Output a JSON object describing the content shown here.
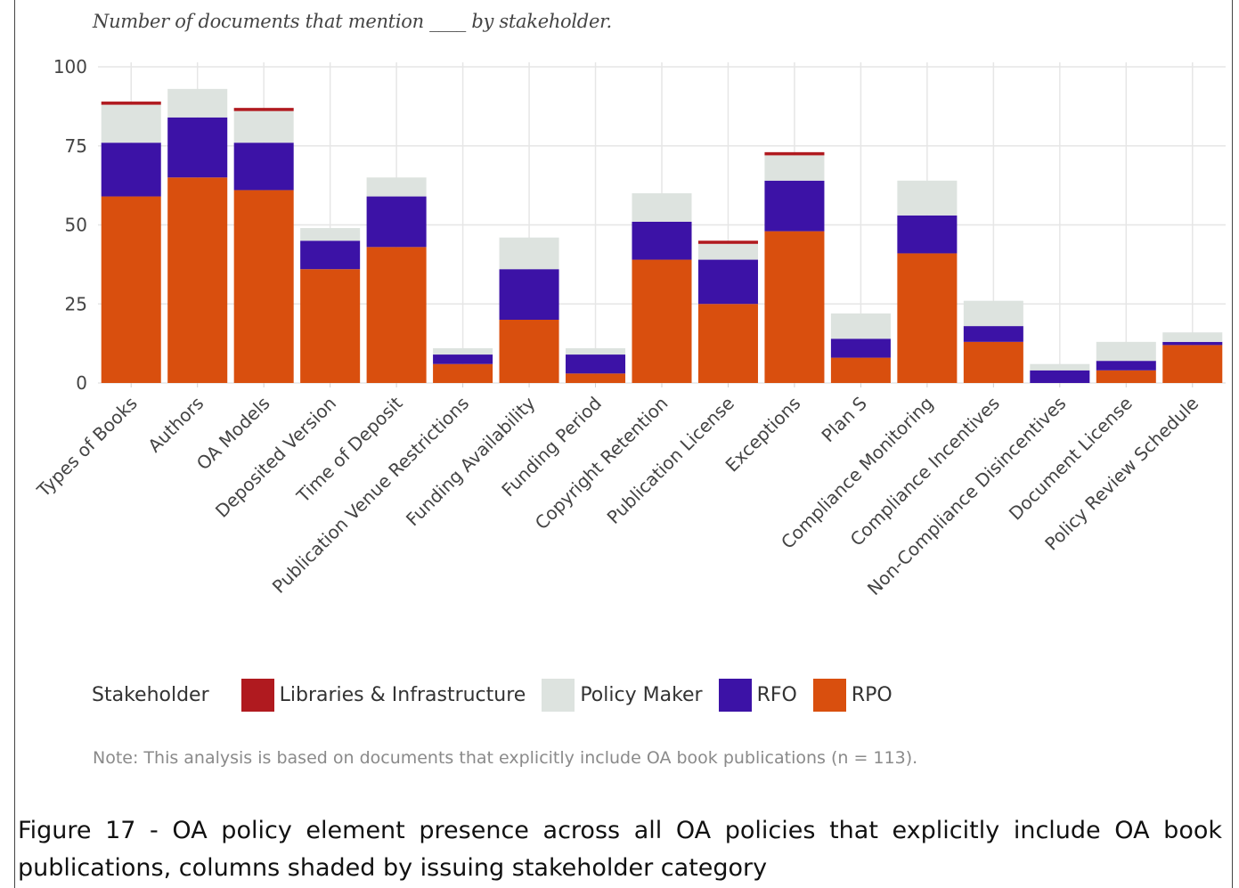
{
  "chart_data": {
    "type": "bar",
    "stacked": true,
    "title": "Number of documents that mention ____ by stakeholder.",
    "ylim": [
      0,
      100
    ],
    "yticks": [
      0,
      25,
      50,
      75,
      100
    ],
    "grid": true,
    "legend_position": "bottom",
    "categories": [
      "Types of Books",
      "Authors",
      "OA Models",
      "Deposited Version",
      "Time of Deposit",
      "Publication Venue Restrictions",
      "Funding Availability",
      "Funding Period",
      "Copyright Retention",
      "Publication License",
      "Exceptions",
      "Plan S",
      "Compliance Monitoring",
      "Compliance Incentives",
      "Non-Compliance Disincentives",
      "Document License",
      "Policy Review Schedule"
    ],
    "series": [
      {
        "name": "RPO",
        "color": "#d94f0e",
        "values": [
          59,
          65,
          61,
          36,
          43,
          6,
          20,
          3,
          39,
          25,
          48,
          8,
          41,
          13,
          0,
          4,
          12
        ]
      },
      {
        "name": "RFO",
        "color": "#3c12a6",
        "values": [
          17,
          19,
          15,
          9,
          16,
          3,
          16,
          6,
          12,
          14,
          16,
          6,
          12,
          5,
          4,
          3,
          1
        ]
      },
      {
        "name": "Policy Maker",
        "color": "#dde3df",
        "values": [
          12,
          9,
          10,
          4,
          6,
          2,
          10,
          2,
          9,
          5,
          8,
          8,
          11,
          8,
          2,
          6,
          3
        ]
      },
      {
        "name": "Libraries & Infrastructure",
        "color": "#b01a1f",
        "values": [
          1,
          0,
          1,
          0,
          0,
          0,
          0,
          0,
          0,
          1,
          1,
          0,
          0,
          0,
          0,
          0,
          0
        ]
      }
    ]
  },
  "title": "Number of documents that mention ____ by stakeholder.",
  "legend": {
    "title": "Stakeholder",
    "items": [
      {
        "label": "Libraries & Infrastructure",
        "color": "#b01a1f"
      },
      {
        "label": "Policy Maker",
        "color": "#dde3df"
      },
      {
        "label": "RFO",
        "color": "#3c12a6"
      },
      {
        "label": "RPO",
        "color": "#d94f0e"
      }
    ]
  },
  "note": "Note: This analysis is based on documents that explicitly include OA book publications (n = 113).",
  "caption": "Figure 17 - OA policy element presence across all OA policies that explicitly include OA book publications, columns shaded by issuing stakeholder category"
}
